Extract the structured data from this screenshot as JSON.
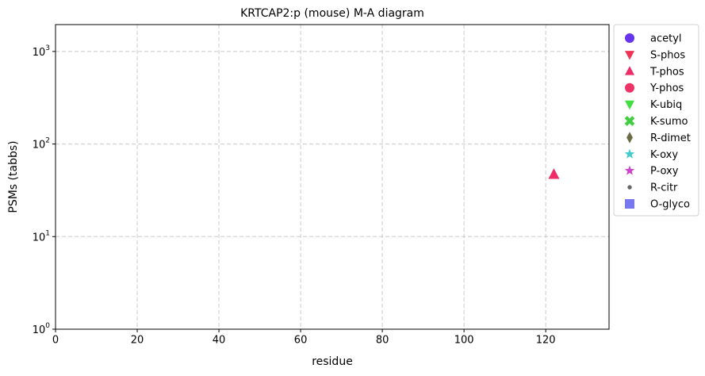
{
  "chart_data": {
    "type": "scatter",
    "title": "KRTCAP2:p (mouse) M-A diagram",
    "x_label": "residue",
    "y_label": "PSMs (tabbs)",
    "xlim": [
      0,
      135.5
    ],
    "xticks": [
      0,
      20,
      40,
      60,
      80,
      100,
      120
    ],
    "ylim": [
      1,
      1950
    ],
    "log_y": true,
    "yticks": [
      {
        "value": 1,
        "label": "10^0"
      },
      {
        "value": 10,
        "label": "10^1"
      },
      {
        "value": 100,
        "label": "10^2"
      },
      {
        "value": 1000,
        "label": "10^3"
      }
    ],
    "grid": true,
    "legend": "outside-right",
    "series": [
      {
        "name": "acetyl",
        "color": "#6633ee",
        "marker": "circle",
        "x": [],
        "values": []
      },
      {
        "name": "S-phos",
        "color": "#ee3355",
        "marker": "triangle-down",
        "x": [],
        "values": []
      },
      {
        "name": "T-phos",
        "color": "#ee2d66",
        "marker": "triangle-up",
        "x": [
          122
        ],
        "values": [
          47
        ]
      },
      {
        "name": "Y-phos",
        "color": "#ee3366",
        "marker": "circle",
        "x": [],
        "values": []
      },
      {
        "name": "K-ubiq",
        "color": "#44dd44",
        "marker": "triangle-down",
        "x": [],
        "values": []
      },
      {
        "name": "K-sumo",
        "color": "#44cc44",
        "marker": "x",
        "x": [],
        "values": []
      },
      {
        "name": "R-dimet",
        "color": "#6b6b45",
        "marker": "diamond",
        "x": [],
        "values": []
      },
      {
        "name": "K-oxy",
        "color": "#44cccc",
        "marker": "star",
        "x": [],
        "values": []
      },
      {
        "name": "P-oxy",
        "color": "#cc44cc",
        "marker": "star",
        "x": [],
        "values": []
      },
      {
        "name": "R-citr",
        "color": "#666666",
        "marker": "dot",
        "x": [],
        "values": []
      },
      {
        "name": "O-glyco",
        "color": "#7777ee",
        "marker": "square",
        "x": [],
        "values": []
      }
    ]
  }
}
